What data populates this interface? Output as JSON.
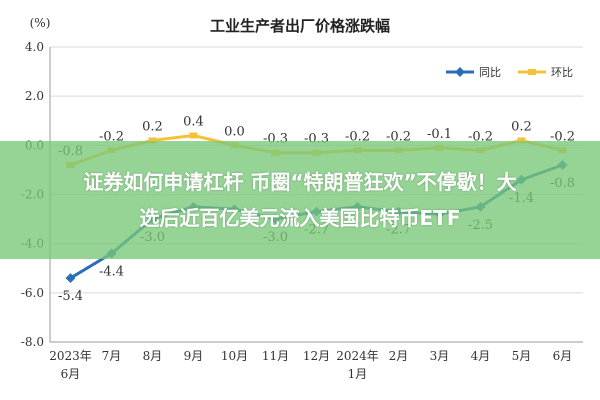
{
  "chart_data": {
    "type": "line",
    "title": "工业生产者出厂价格涨跌幅",
    "y_unit": "(%)",
    "ylim": [
      -8.0,
      4.0
    ],
    "yticks": [
      "4.0",
      "2.0",
      "0.0",
      "-2.0",
      "-4.0",
      "-6.0",
      "-8.0"
    ],
    "ytick_values": [
      4,
      2,
      0,
      -2,
      -4,
      -6,
      -8
    ],
    "grid": true,
    "legend_position": "top-right",
    "categories": [
      [
        "2023年",
        "6月"
      ],
      [
        "7月"
      ],
      [
        "8月"
      ],
      [
        "9月"
      ],
      [
        "10月"
      ],
      [
        "11月"
      ],
      [
        "12月"
      ],
      [
        "2024年",
        "1月"
      ],
      [
        "2月"
      ],
      [
        "3月"
      ],
      [
        "4月"
      ],
      [
        "5月"
      ],
      [
        "6月"
      ]
    ],
    "series": [
      {
        "name": "同比",
        "color": "#2a6fb5",
        "values": [
          -5.4,
          -4.4,
          -3.0,
          -2.5,
          -2.6,
          -3.0,
          -2.7,
          -2.5,
          -2.7,
          -2.8,
          -2.5,
          -1.4,
          -0.8
        ],
        "labels": [
          "-5.4",
          "-4.4",
          "-3.0",
          "",
          "",
          "-3.0",
          "-2.7",
          "",
          "-2.7",
          "",
          "-2.5",
          "-1.4",
          "-0.8"
        ]
      },
      {
        "name": "环比",
        "color": "#f5c03a",
        "values": [
          -0.8,
          -0.2,
          0.2,
          0.4,
          0.0,
          -0.3,
          -0.3,
          -0.2,
          -0.2,
          -0.1,
          -0.2,
          0.2,
          -0.2
        ],
        "labels": [
          "-0.8",
          "-0.2",
          "0.2",
          "0.4",
          "0.0",
          "-0.3",
          "-0.3",
          "-0.2",
          "-0.2",
          "-0.1",
          "-0.2",
          "0.2",
          "-0.2"
        ]
      }
    ]
  },
  "banner": {
    "line1": "证券如何申请杠杆 币圈“特朗普狂欢”不停歇！大",
    "line2": "选后近百亿美元流入美国比特币ETF"
  }
}
